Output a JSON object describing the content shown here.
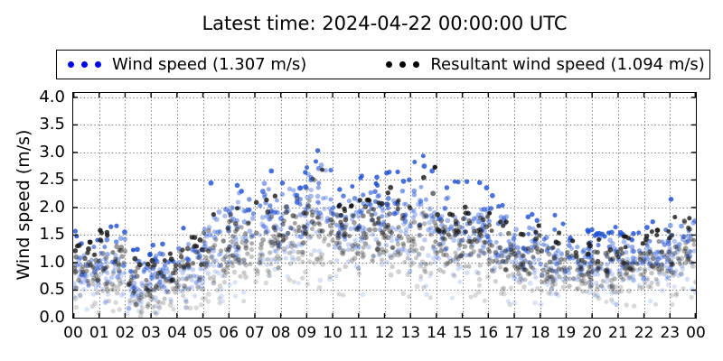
{
  "chart_data": {
    "type": "scatter",
    "title": "Latest time: 2024-04-22 00:00:00 UTC",
    "ylabel": "Wind speed (m/s)",
    "xlabel": "",
    "ylim": [
      0.0,
      4.0
    ],
    "y_render_max": 4.08,
    "ytick_step": 0.5,
    "yticks": [
      "0.0",
      "0.5",
      "1.0",
      "1.5",
      "2.0",
      "2.5",
      "3.0",
      "3.5",
      "4.0"
    ],
    "xticks": [
      "00",
      "01",
      "02",
      "03",
      "04",
      "05",
      "06",
      "07",
      "08",
      "09",
      "10",
      "11",
      "12",
      "13",
      "14",
      "15",
      "16",
      "17",
      "18",
      "19",
      "20",
      "21",
      "22",
      "23",
      "00"
    ],
    "grid": "dotted-both-axes",
    "legend_position": "top-outside",
    "points_per_hour_per_series": 46,
    "marker": "dot",
    "note_alpha_fade": "points fade with lower values / age: strong color at high values, pale at low",
    "series": [
      {
        "name": "Wind speed (1.307 m/s)",
        "mean_mps": 1.307,
        "legend_color": "#0007e6",
        "point_color": "#1c4ed2",
        "hourly_min_typ_max": [
          [
            0.25,
            0.85,
            1.6
          ],
          [
            0.3,
            0.95,
            1.75
          ],
          [
            0.1,
            0.6,
            1.25
          ],
          [
            0.15,
            0.7,
            1.35
          ],
          [
            0.3,
            0.9,
            1.65
          ],
          [
            0.5,
            1.25,
            2.45
          ],
          [
            0.65,
            1.45,
            2.55
          ],
          [
            0.7,
            1.6,
            2.75
          ],
          [
            0.75,
            1.7,
            2.7
          ],
          [
            0.8,
            1.8,
            3.15
          ],
          [
            0.7,
            1.7,
            2.55
          ],
          [
            0.7,
            1.7,
            2.6
          ],
          [
            0.7,
            1.75,
            2.75
          ],
          [
            0.7,
            1.7,
            2.95
          ],
          [
            0.6,
            1.5,
            2.55
          ],
          [
            0.6,
            1.5,
            2.5
          ],
          [
            0.5,
            1.3,
            2.25
          ],
          [
            0.45,
            1.1,
            1.95
          ],
          [
            0.4,
            1.0,
            1.9
          ],
          [
            0.4,
            1.0,
            1.6
          ],
          [
            0.4,
            1.0,
            1.65
          ],
          [
            0.45,
            1.05,
            1.7
          ],
          [
            0.5,
            1.1,
            1.8
          ],
          [
            0.5,
            1.2,
            2.2
          ]
        ]
      },
      {
        "name": "Resultant wind speed (1.094 m/s)",
        "mean_mps": 1.094,
        "legend_color": "#000000",
        "point_color": "#141414",
        "hourly_min_typ_max": [
          [
            0.15,
            0.7,
            1.4
          ],
          [
            0.2,
            0.8,
            1.6
          ],
          [
            0.05,
            0.5,
            1.1
          ],
          [
            0.1,
            0.55,
            1.2
          ],
          [
            0.2,
            0.75,
            1.5
          ],
          [
            0.4,
            1.05,
            2.0
          ],
          [
            0.5,
            1.25,
            2.15
          ],
          [
            0.55,
            1.35,
            2.3
          ],
          [
            0.6,
            1.45,
            2.55
          ],
          [
            0.65,
            1.55,
            2.9
          ],
          [
            0.6,
            1.45,
            2.2
          ],
          [
            0.6,
            1.45,
            2.3
          ],
          [
            0.6,
            1.5,
            2.4
          ],
          [
            0.6,
            1.45,
            2.8
          ],
          [
            0.5,
            1.3,
            2.0
          ],
          [
            0.5,
            1.3,
            2.1
          ],
          [
            0.4,
            1.15,
            1.95
          ],
          [
            0.35,
            0.95,
            1.7
          ],
          [
            0.3,
            0.9,
            1.55
          ],
          [
            0.3,
            0.85,
            1.4
          ],
          [
            0.3,
            0.85,
            1.45
          ],
          [
            0.35,
            0.9,
            1.5
          ],
          [
            0.4,
            0.95,
            1.6
          ],
          [
            0.4,
            1.0,
            2.05
          ]
        ]
      }
    ],
    "axis_color": "#000000",
    "grid_color": "rgba(0,0,0,0.55)"
  }
}
